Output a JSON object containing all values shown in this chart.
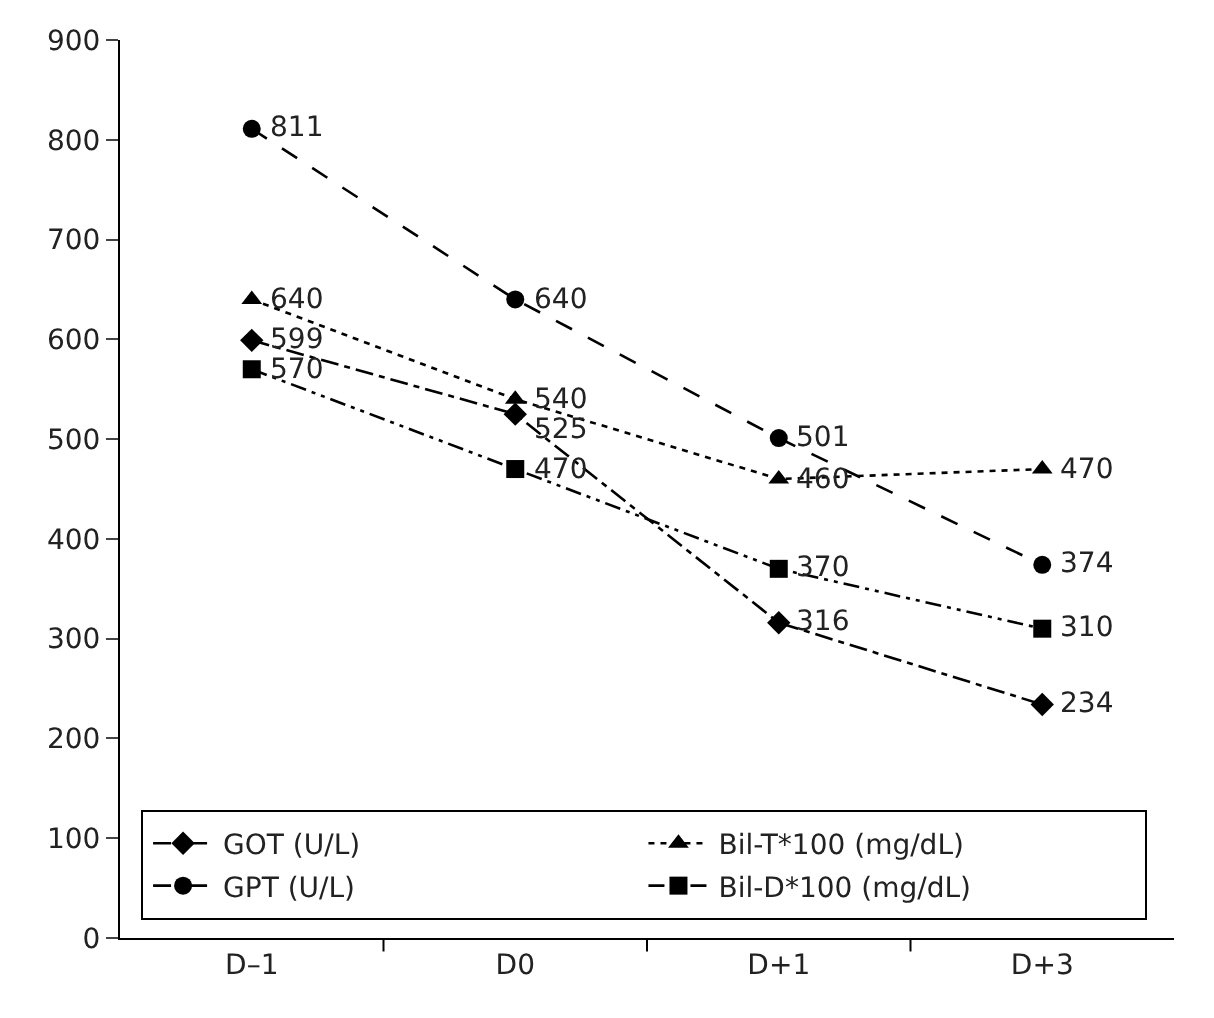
{
  "chart_data": {
    "type": "line",
    "categories": [
      "D–1",
      "D0",
      "D+1",
      "D+3"
    ],
    "series": [
      {
        "name": "GOT (U/L)",
        "color": "#000000",
        "marker": "diamond",
        "line_style": "dashdot",
        "values": [
          599,
          525,
          316,
          234
        ]
      },
      {
        "name": "Bil-T*100 (mg/dL)",
        "color": "#000000",
        "marker": "triangle",
        "line_style": "dotted",
        "values": [
          640,
          540,
          460,
          470
        ]
      },
      {
        "name": "GPT (U/L)",
        "color": "#000000",
        "marker": "circle",
        "line_style": "dashed",
        "values": [
          811,
          640,
          501,
          374
        ]
      },
      {
        "name": "Bil-D*100 (mg/dL)",
        "color": "#000000",
        "marker": "square",
        "line_style": "dashdotdot",
        "values": [
          570,
          470,
          370,
          310
        ]
      }
    ],
    "ylim": [
      0,
      900
    ],
    "yticks": [
      0,
      100,
      200,
      300,
      400,
      500,
      600,
      700,
      800,
      900
    ],
    "grid": false,
    "legend": "bottom left",
    "data_labels": true
  }
}
